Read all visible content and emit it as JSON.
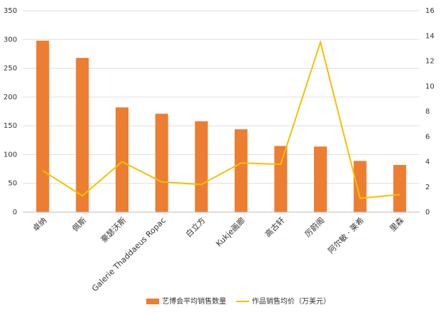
{
  "chart_data": {
    "type": "bar",
    "categories": [
      "卓纳",
      "佩斯",
      "豪瑟沃斯",
      "Galerie Thaddaeus Ropac",
      "白立方",
      "Kukje画廊",
      "高古轩",
      "厉蔚阁",
      "阿尔敏 · 莱希",
      "里森"
    ],
    "series": [
      {
        "name": "艺博会平均销售数量",
        "type": "bar",
        "color": "#ed7d31",
        "values": [
          298,
          268,
          182,
          171,
          158,
          144,
          115,
          114,
          89,
          82
        ]
      },
      {
        "name": "作品销售均价（万美元）",
        "type": "line",
        "axis": "y2",
        "color": "#f5c000",
        "values": [
          3.3,
          1.3,
          4.0,
          2.4,
          2.2,
          3.9,
          3.8,
          13.5,
          1.1,
          1.4
        ]
      }
    ],
    "ylim": [
      0,
      350
    ],
    "yticks": [
      0,
      50,
      100,
      150,
      200,
      250,
      300,
      350
    ],
    "y2lim": [
      0,
      16
    ],
    "y2ticks": [
      0,
      2,
      4,
      6,
      8,
      10,
      12,
      14,
      16
    ],
    "grid": true,
    "legend": "bottom"
  }
}
